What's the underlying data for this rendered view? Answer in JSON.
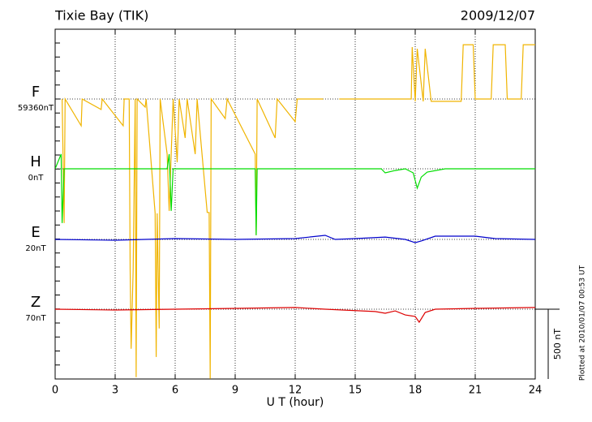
{
  "chart_data": {
    "type": "line",
    "title": "Tixie Bay (TIK)",
    "date": "2009/12/07",
    "xlabel": "U T (hour)",
    "footnote": "Plotted at 2010/01/07 00:53 UT",
    "scale_bar": {
      "value": 500,
      "label": "500 nT"
    },
    "xlim": [
      0,
      24
    ],
    "xticks": [
      0,
      3,
      6,
      9,
      12,
      15,
      18,
      21,
      24
    ],
    "grid": true,
    "series": [
      {
        "name": "F",
        "color": "#f0b400",
        "baseline": {
          "value": 59360,
          "label": "59360nT"
        },
        "x": [
          0.35,
          0.45,
          0.5,
          1.3,
          1.35,
          2.3,
          2.35,
          3.4,
          3.45,
          3.7,
          3.75,
          3.8,
          3.9,
          4.0,
          4.05,
          4.1,
          4.5,
          4.55,
          5.0,
          5.05,
          5.1,
          5.2,
          5.25,
          5.6,
          5.7,
          5.8,
          5.9,
          6.1,
          6.2,
          6.5,
          6.6,
          7.0,
          7.1,
          7.6,
          7.7,
          7.75,
          7.8,
          8.5,
          8.6,
          10.0,
          10.05,
          10.1,
          11.0,
          11.1,
          12.0,
          12.1,
          13.4,
          13.8,
          14.2,
          17.8,
          17.85,
          18.0,
          18.1,
          18.4,
          18.5,
          18.8,
          20.3,
          20.4,
          20.9,
          21.0,
          21.8,
          21.9,
          22.5,
          22.6,
          23.3,
          23.4,
          24
        ],
        "values": [
          59360,
          58471,
          59360,
          59168,
          59360,
          59285,
          59360,
          59168,
          59360,
          59360,
          58134,
          57571,
          58134,
          59360,
          57367,
          59360,
          59302,
          59360,
          58541,
          57512,
          58541,
          57716,
          59360,
          58965,
          58558,
          58965,
          59360,
          58907,
          59360,
          59081,
          59360,
          58965,
          59360,
          58547,
          58547,
          57356,
          59360,
          59220,
          59360,
          58965,
          58384,
          59360,
          59081,
          59360,
          59197,
          59360,
          59360,
          null,
          59360,
          59360,
          59732,
          59343,
          59720,
          59343,
          59720,
          59343,
          59343,
          59749,
          59749,
          59360,
          59360,
          59749,
          59749,
          59360,
          59360,
          59749,
          59749
        ]
      },
      {
        "name": "H",
        "color": "#00dd00",
        "baseline": {
          "value": 0,
          "label": "0nT"
        },
        "x": [
          0,
          0.3,
          0.35,
          0.45,
          5.6,
          5.7,
          5.8,
          5.9,
          10,
          10.05,
          10.1,
          16.3,
          16.5,
          17,
          17.5,
          17.9,
          18.1,
          18.3,
          18.6,
          19.5,
          24
        ],
        "values": [
          0,
          105,
          -389,
          0,
          0,
          105,
          -302,
          0,
          0,
          -476,
          0,
          0,
          -29,
          -12,
          0,
          -29,
          -139,
          -60,
          -23,
          0,
          0
        ]
      },
      {
        "name": "E",
        "color": "#0000cc",
        "baseline": {
          "value": 20,
          "label": "20nT"
        },
        "x": [
          0,
          3,
          6,
          9,
          12,
          13.5,
          14,
          15,
          16.5,
          17.5,
          18,
          18.3,
          19,
          21,
          22,
          24
        ],
        "values": [
          20,
          14,
          26,
          20,
          26,
          49,
          20,
          26,
          37,
          20,
          -3,
          9,
          43,
          43,
          26,
          20
        ]
      },
      {
        "name": "Z",
        "color": "#dd0000",
        "baseline": {
          "value": 70,
          "label": "70nT"
        },
        "x": [
          0,
          3,
          6,
          9,
          12,
          13.5,
          16,
          16.5,
          17,
          17.5,
          18,
          18.2,
          18.5,
          19,
          21,
          24
        ],
        "values": [
          70,
          64,
          70,
          76,
          82,
          70,
          53,
          41,
          58,
          29,
          18,
          -23,
          47,
          70,
          76,
          82
        ]
      }
    ]
  }
}
